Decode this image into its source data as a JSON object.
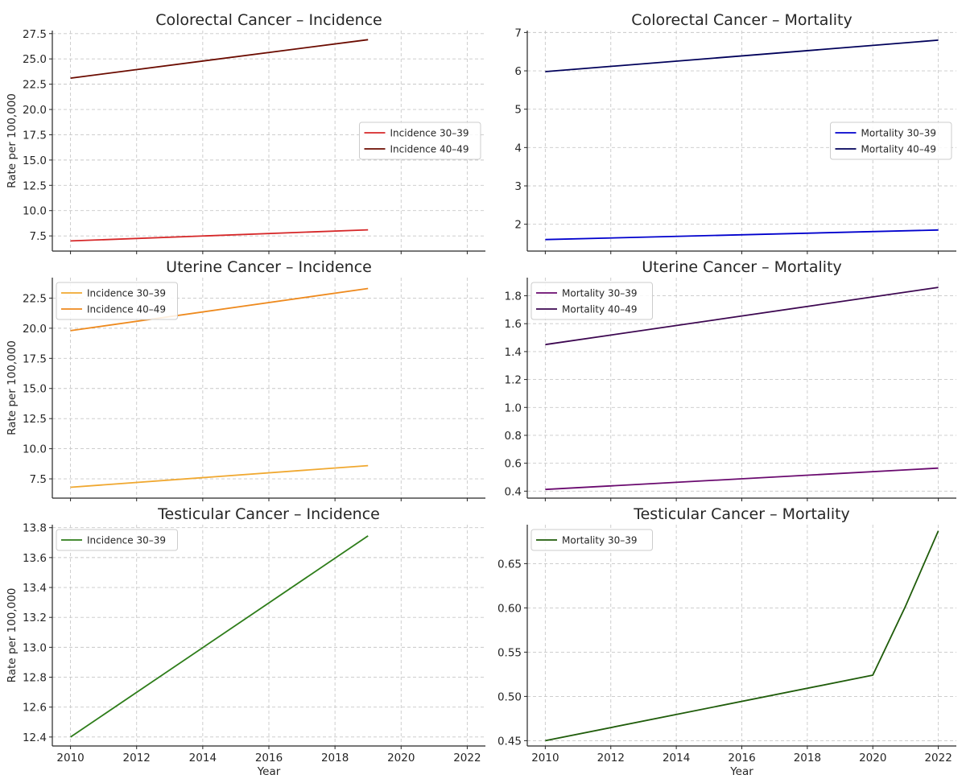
{
  "chart_data": [
    {
      "type": "line",
      "title": "Colorectal Cancer – Incidence",
      "xlabel": "",
      "ylabel": "Rate per 100,000",
      "xlim": [
        2009.45,
        2022.55
      ],
      "ylim": [
        6.0,
        27.8
      ],
      "xticks": [
        2010,
        2012,
        2014,
        2016,
        2018,
        2020,
        2022
      ],
      "xtick_labels_shown": false,
      "yticks": [
        7.5,
        10.0,
        12.5,
        15.0,
        17.5,
        20.0,
        22.5,
        25.0,
        27.5
      ],
      "ytick_labels": [
        "7.5",
        "10.0",
        "12.5",
        "15.0",
        "17.5",
        "20.0",
        "22.5",
        "25.0",
        "27.5"
      ],
      "grid": true,
      "legend_position": "center-right",
      "series": [
        {
          "name": "Incidence 30–39",
          "color": "#d62728",
          "x": [
            2010,
            2019
          ],
          "y": [
            7.0,
            8.1
          ]
        },
        {
          "name": "Incidence 40–49",
          "color": "#6b0b00",
          "x": [
            2010,
            2019
          ],
          "y": [
            23.1,
            26.9
          ]
        }
      ]
    },
    {
      "type": "line",
      "title": "Colorectal Cancer – Mortality",
      "xlabel": "",
      "ylabel": "",
      "xlim": [
        2009.45,
        2022.55
      ],
      "ylim": [
        1.3,
        7.05
      ],
      "xticks": [
        2010,
        2012,
        2014,
        2016,
        2018,
        2020,
        2022
      ],
      "xtick_labels_shown": false,
      "yticks": [
        2,
        3,
        4,
        5,
        6,
        7
      ],
      "ytick_labels": [
        "2",
        "3",
        "4",
        "5",
        "6",
        "7"
      ],
      "grid": true,
      "legend_position": "center-right",
      "series": [
        {
          "name": "Mortality 30–39",
          "color": "#0000cd",
          "x": [
            2010,
            2022
          ],
          "y": [
            1.6,
            1.85
          ]
        },
        {
          "name": "Mortality 40–49",
          "color": "#00005a",
          "x": [
            2010,
            2022
          ],
          "y": [
            5.98,
            6.8
          ]
        }
      ]
    },
    {
      "type": "line",
      "title": "Uterine Cancer – Incidence",
      "xlabel": "",
      "ylabel": "Rate per 100,000",
      "xlim": [
        2009.45,
        2022.55
      ],
      "ylim": [
        5.9,
        24.2
      ],
      "xticks": [
        2010,
        2012,
        2014,
        2016,
        2018,
        2020,
        2022
      ],
      "xtick_labels_shown": false,
      "yticks": [
        7.5,
        10.0,
        12.5,
        15.0,
        17.5,
        20.0,
        22.5
      ],
      "ytick_labels": [
        "7.5",
        "10.0",
        "12.5",
        "15.0",
        "17.5",
        "20.0",
        "22.5"
      ],
      "grid": true,
      "legend_position": "upper-left",
      "series": [
        {
          "name": "Incidence 30–39",
          "color": "#f0a830",
          "x": [
            2010,
            2019
          ],
          "y": [
            6.8,
            8.6
          ]
        },
        {
          "name": "Incidence 40–49",
          "color": "#ee8a1e",
          "x": [
            2010,
            2019
          ],
          "y": [
            19.8,
            23.3
          ]
        }
      ]
    },
    {
      "type": "line",
      "title": "Uterine Cancer – Mortality",
      "xlabel": "",
      "ylabel": "",
      "xlim": [
        2009.45,
        2022.55
      ],
      "ylim": [
        0.35,
        1.93
      ],
      "xticks": [
        2010,
        2012,
        2014,
        2016,
        2018,
        2020,
        2022
      ],
      "xtick_labels_shown": false,
      "yticks": [
        0.4,
        0.6,
        0.8,
        1.0,
        1.2,
        1.4,
        1.6,
        1.8
      ],
      "ytick_labels": [
        "0.4",
        "0.6",
        "0.8",
        "1.0",
        "1.2",
        "1.4",
        "1.6",
        "1.8"
      ],
      "grid": true,
      "legend_position": "upper-left",
      "series": [
        {
          "name": "Mortality 30–39",
          "color": "#6a0a6f",
          "x": [
            2010,
            2022
          ],
          "y": [
            0.412,
            0.565
          ]
        },
        {
          "name": "Mortality 40–49",
          "color": "#3c0650",
          "x": [
            2010,
            2022
          ],
          "y": [
            1.45,
            1.86
          ]
        }
      ]
    },
    {
      "type": "line",
      "title": "Testicular Cancer – Incidence",
      "xlabel": "Year",
      "ylabel": "Rate per 100,000",
      "xlim": [
        2009.45,
        2022.55
      ],
      "ylim": [
        12.34,
        13.82
      ],
      "xticks": [
        2010,
        2012,
        2014,
        2016,
        2018,
        2020,
        2022
      ],
      "xtick_labels_shown": true,
      "yticks": [
        12.4,
        12.6,
        12.8,
        13.0,
        13.2,
        13.4,
        13.6,
        13.8
      ],
      "ytick_labels": [
        "12.4",
        "12.6",
        "12.8",
        "13.0",
        "13.2",
        "13.4",
        "13.6",
        "13.8"
      ],
      "grid": true,
      "legend_position": "upper-left",
      "series": [
        {
          "name": "Incidence 30–39",
          "color": "#2e7d1a",
          "x": [
            2010,
            2019
          ],
          "y": [
            12.4,
            13.745
          ]
        }
      ]
    },
    {
      "type": "line",
      "title": "Testicular Cancer – Mortality",
      "xlabel": "Year",
      "ylabel": "",
      "xlim": [
        2009.45,
        2022.55
      ],
      "ylim": [
        0.444,
        0.694
      ],
      "xticks": [
        2010,
        2012,
        2014,
        2016,
        2018,
        2020,
        2022
      ],
      "xtick_labels_shown": true,
      "yticks": [
        0.45,
        0.5,
        0.55,
        0.6,
        0.65
      ],
      "ytick_labels": [
        "0.45",
        "0.50",
        "0.55",
        "0.60",
        "0.65"
      ],
      "grid": true,
      "legend_position": "upper-left",
      "series": [
        {
          "name": "Mortality 30–39",
          "color": "#1f5c0a",
          "x": [
            2010,
            2020,
            2021,
            2022
          ],
          "y": [
            0.45,
            0.524,
            0.602,
            0.687
          ]
        }
      ]
    }
  ]
}
